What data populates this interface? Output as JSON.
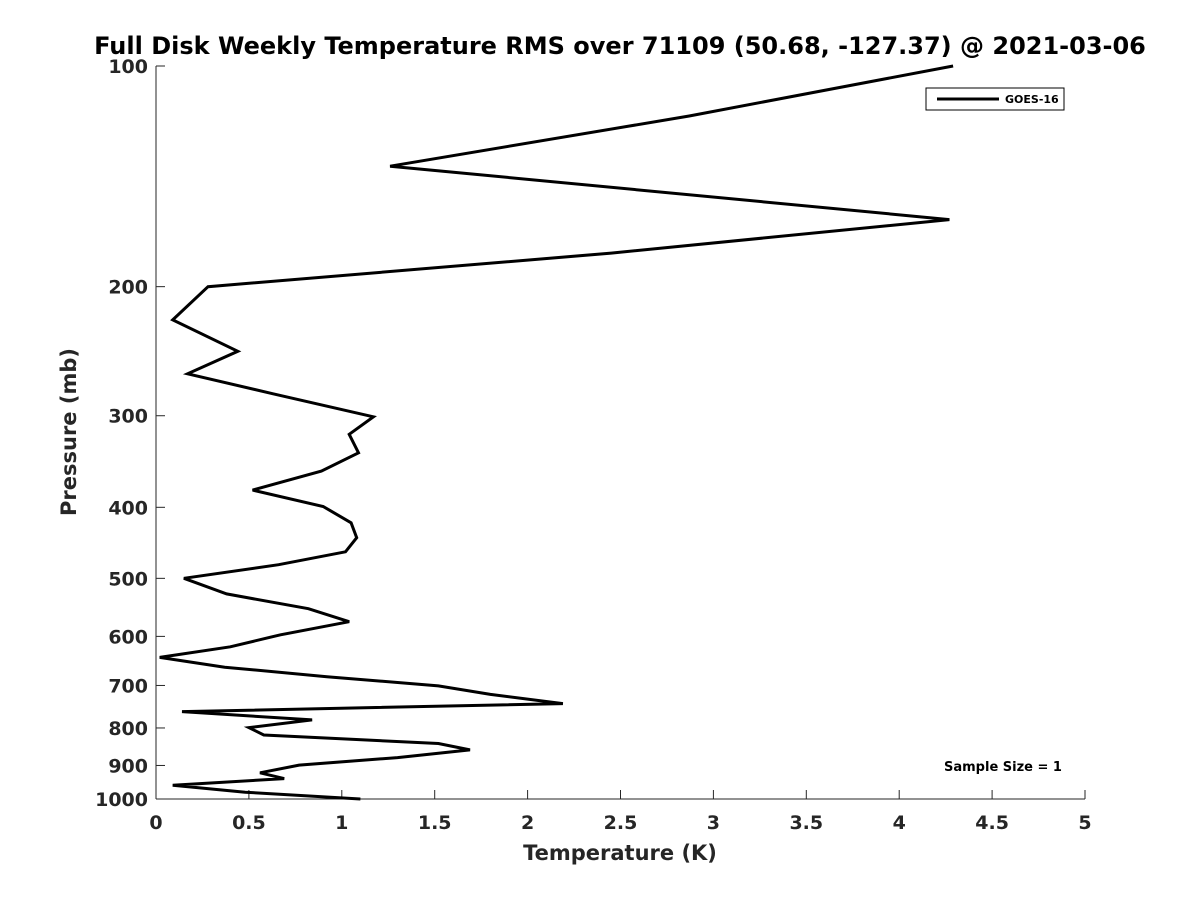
{
  "chart_data": {
    "type": "line",
    "title": "Full Disk Weekly Temperature RMS over 71109 (50.68, -127.37) @ 2021-03-06",
    "xlabel": "Temperature (K)",
    "ylabel": "Pressure (mb)",
    "xlim": [
      0,
      5
    ],
    "ylim": [
      100,
      1000
    ],
    "y_scale": "log",
    "y_reversed": true,
    "x_ticks": [
      "0",
      "0.5",
      "1",
      "1.5",
      "2",
      "2.5",
      "3",
      "3.5",
      "4",
      "4.5",
      "5"
    ],
    "y_ticks": [
      "100",
      "200",
      "300",
      "400",
      "500",
      "600",
      "700",
      "800",
      "900",
      "1000"
    ],
    "grid": false,
    "legend_position": "top-right",
    "series": [
      {
        "name": "GOES-16",
        "color": "#000000",
        "x": [
          4.29,
          2.87,
          1.26,
          4.27,
          2.45,
          0.28,
          0.09,
          0.44,
          0.17,
          0.63,
          1.17,
          1.04,
          1.09,
          0.89,
          0.52,
          0.9,
          1.05,
          1.08,
          1.02,
          0.66,
          0.15,
          0.38,
          0.82,
          1.04,
          0.67,
          0.4,
          0.02,
          0.37,
          0.92,
          1.52,
          1.8,
          2.19,
          0.14,
          0.84,
          0.5,
          0.58,
          1.52,
          1.69,
          1.3,
          0.77,
          0.56,
          0.69,
          0.09,
          0.48,
          1.1
        ],
        "y": [
          100,
          117,
          137,
          162,
          180,
          200,
          222,
          245,
          263,
          280,
          301,
          318,
          337,
          357,
          379,
          399,
          420,
          440,
          460,
          479,
          500,
          525,
          550,
          573,
          597,
          620,
          641,
          661,
          681,
          701,
          720,
          741,
          760,
          780,
          799,
          818,
          840,
          857,
          878,
          899,
          921,
          938,
          958,
          979,
          1000
        ]
      }
    ],
    "annotations": [
      "Sample Size = 1"
    ]
  }
}
